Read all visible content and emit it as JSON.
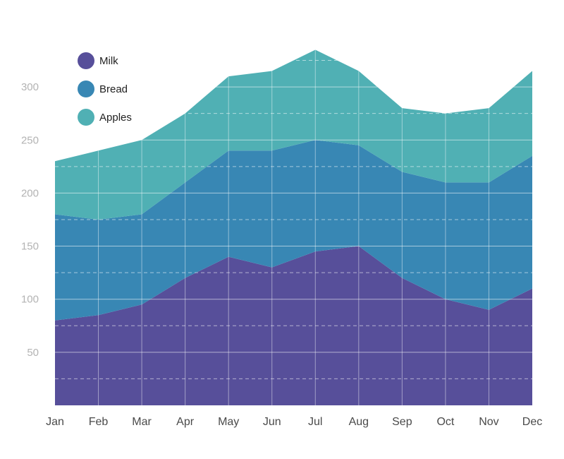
{
  "chart_data": {
    "type": "area",
    "stacked": true,
    "categories": [
      "Jan",
      "Feb",
      "Mar",
      "Apr",
      "May",
      "Jun",
      "Jul",
      "Aug",
      "Sep",
      "Oct",
      "Nov",
      "Dec"
    ],
    "series": [
      {
        "name": "Milk",
        "color": "#574f9a",
        "values": [
          80,
          85,
          95,
          120,
          140,
          130,
          145,
          150,
          120,
          100,
          90,
          110
        ]
      },
      {
        "name": "Bread",
        "color": "#3887b4",
        "values": [
          100,
          90,
          85,
          90,
          100,
          110,
          105,
          95,
          100,
          110,
          120,
          125
        ]
      },
      {
        "name": "Apples",
        "color": "#50b0b4",
        "values": [
          50,
          65,
          70,
          65,
          70,
          75,
          85,
          70,
          60,
          65,
          70,
          80
        ]
      }
    ],
    "yticks": [
      50,
      100,
      150,
      200,
      250,
      300
    ],
    "ylim": [
      0,
      350
    ],
    "grid": true,
    "legend": "top-left",
    "title": "",
    "xlabel": "",
    "ylabel": ""
  }
}
